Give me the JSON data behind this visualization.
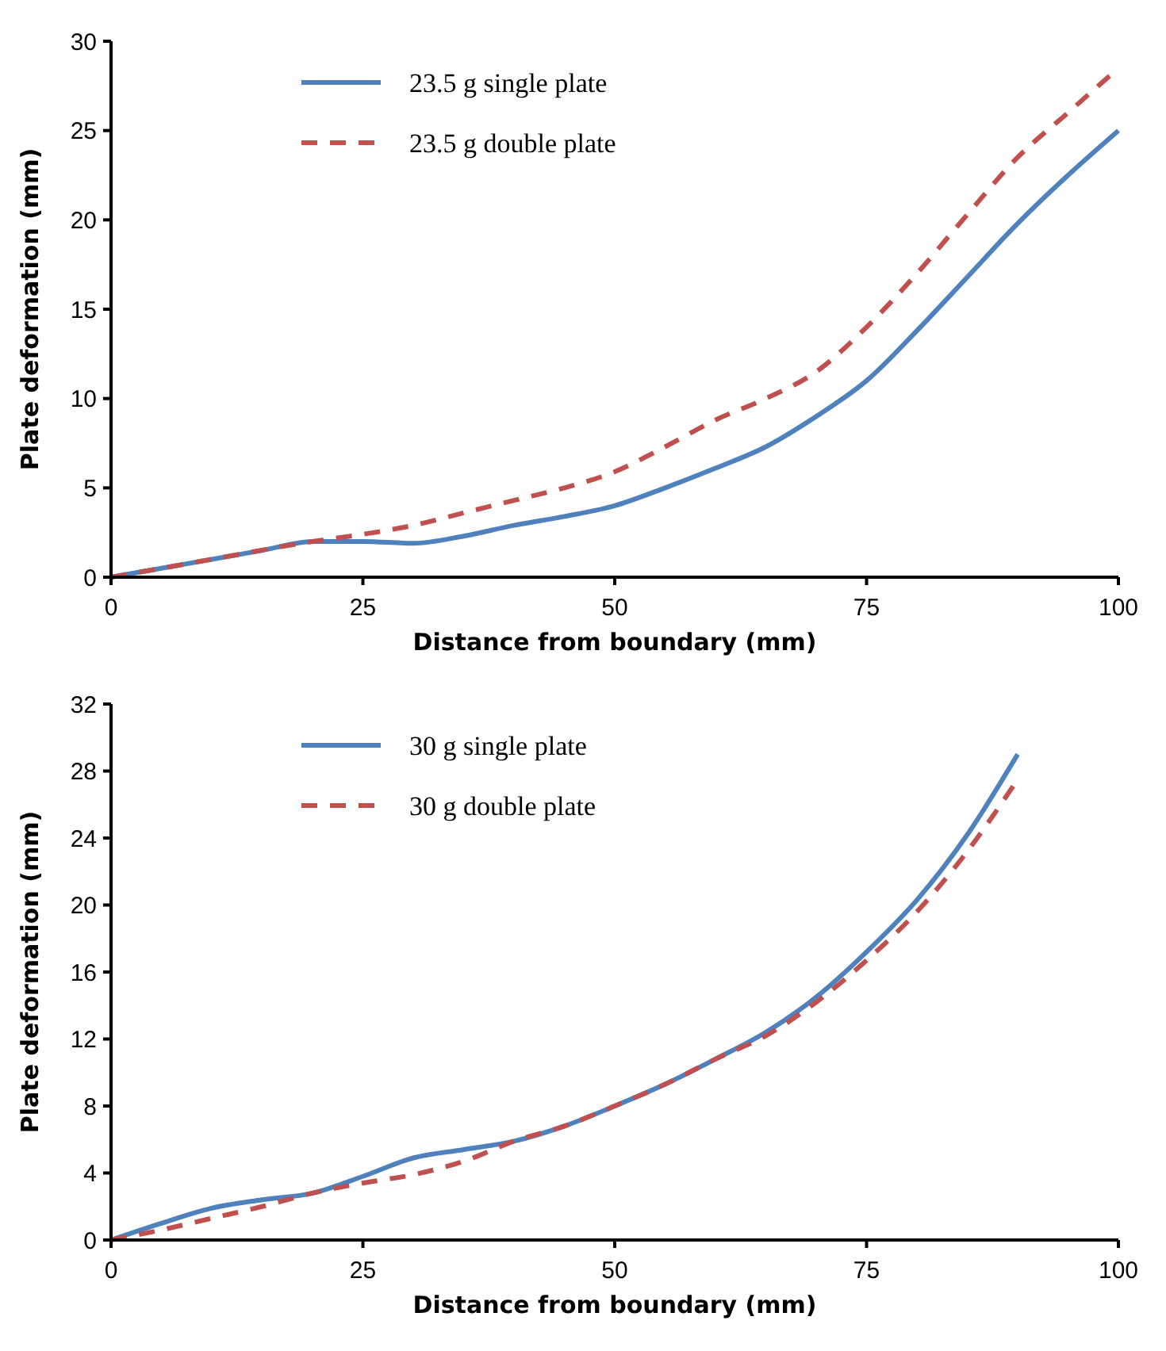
{
  "chart_data": [
    {
      "type": "line",
      "xlabel": "Distance from boundary (mm)",
      "ylabel": "Plate deformation (mm)",
      "xlim": [
        0,
        100
      ],
      "xticks": [
        0,
        25,
        50,
        75,
        100
      ],
      "ylim": [
        0,
        30
      ],
      "yticks": [
        0,
        5,
        10,
        15,
        20,
        25,
        30
      ],
      "legend": "top left",
      "grid": false,
      "series": [
        {
          "name": "23.5 g single plate",
          "color": "#4f81bd",
          "line_style": "solid",
          "x": [
            0,
            5,
            10,
            15,
            20,
            25,
            30,
            35,
            40,
            45,
            50,
            55,
            60,
            65,
            70,
            75,
            80,
            85,
            90,
            95,
            100
          ],
          "values": [
            0,
            0.5,
            1,
            1.5,
            2,
            2,
            1.9,
            2.3,
            2.9,
            3.4,
            4,
            5,
            6.1,
            7.3,
            9,
            11,
            13.8,
            16.8,
            19.8,
            22.5,
            25
          ]
        },
        {
          "name": "23.5 g double plate",
          "color": "#c0504d",
          "line_style": "dashed",
          "x": [
            0,
            10,
            20,
            25,
            30,
            35,
            40,
            45,
            50,
            55,
            60,
            65,
            70,
            75,
            80,
            85,
            90,
            95,
            100
          ],
          "values": [
            0,
            1,
            2,
            2.4,
            2.9,
            3.6,
            4.3,
            5,
            5.9,
            7.3,
            8.8,
            10,
            11.5,
            14,
            17,
            20.3,
            23.5,
            26,
            28.5
          ]
        }
      ]
    },
    {
      "type": "line",
      "xlabel": "Distance from boundary (mm)",
      "ylabel": "Plate deformation (mm)",
      "xlim": [
        0,
        100
      ],
      "xticks": [
        0,
        25,
        50,
        75,
        100
      ],
      "ylim": [
        0,
        32
      ],
      "yticks": [
        0,
        4,
        8,
        12,
        16,
        20,
        24,
        28,
        32
      ],
      "legend": "top left",
      "grid": false,
      "series": [
        {
          "name": "30 g single plate",
          "color": "#4f81bd",
          "line_style": "solid",
          "x": [
            0,
            5,
            10,
            15,
            20,
            25,
            30,
            35,
            40,
            45,
            50,
            55,
            60,
            65,
            70,
            75,
            80,
            85,
            90
          ],
          "values": [
            0,
            1,
            1.9,
            2.4,
            2.8,
            3.8,
            4.9,
            5.4,
            5.9,
            6.8,
            8,
            9.3,
            10.8,
            12.4,
            14.5,
            17.2,
            20.3,
            24.2,
            29
          ]
        },
        {
          "name": "30 g double plate",
          "color": "#c0504d",
          "line_style": "dashed",
          "x": [
            0,
            5,
            10,
            15,
            20,
            25,
            30,
            35,
            40,
            45,
            50,
            55,
            60,
            65,
            70,
            75,
            80,
            85,
            90
          ],
          "values": [
            0,
            0.6,
            1.3,
            2,
            2.8,
            3.4,
            3.9,
            4.7,
            5.9,
            6.8,
            8,
            9.3,
            10.8,
            12.2,
            14.2,
            16.7,
            19.6,
            23.2,
            27.5
          ]
        }
      ]
    }
  ]
}
